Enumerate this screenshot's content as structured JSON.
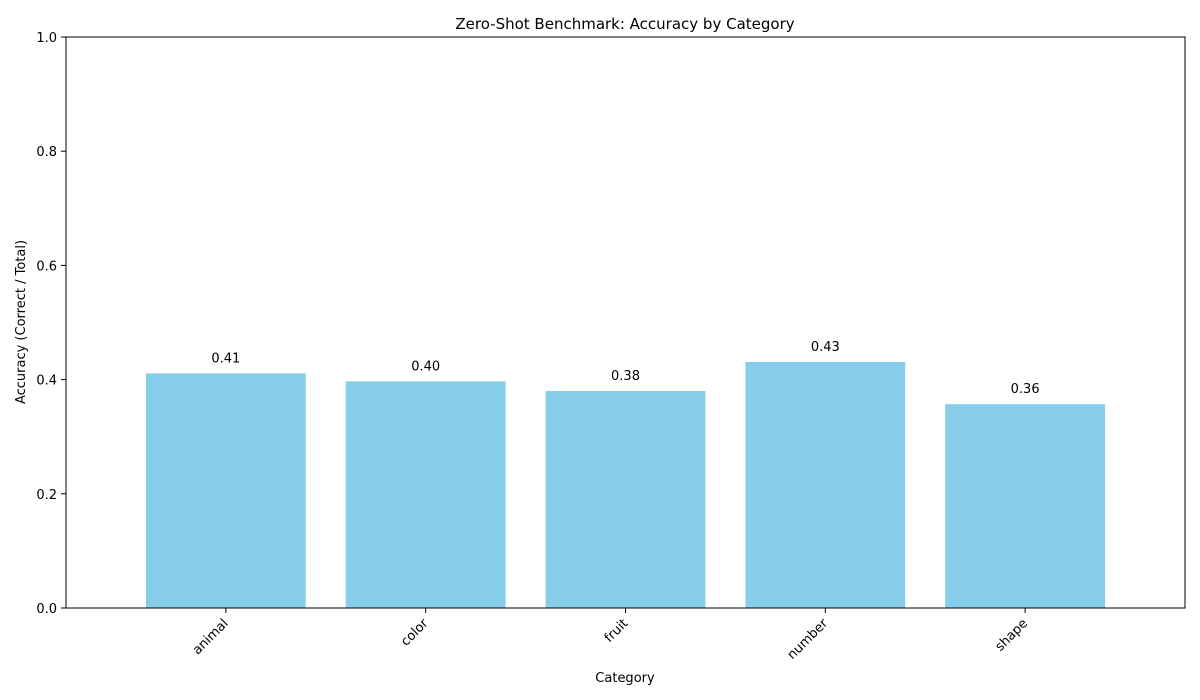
{
  "chart_data": {
    "type": "bar",
    "title": "Zero-Shot Benchmark: Accuracy by Category",
    "xlabel": "Category",
    "ylabel": "Accuracy (Correct / Total)",
    "categories": [
      "animal",
      "color",
      "fruit",
      "number",
      "shape"
    ],
    "values": [
      0.411,
      0.397,
      0.38,
      0.431,
      0.357
    ],
    "value_labels": [
      "0.41",
      "0.40",
      "0.38",
      "0.43",
      "0.36"
    ],
    "ylim": [
      0,
      1
    ],
    "yticks": [
      "0.0",
      "0.2",
      "0.4",
      "0.6",
      "0.8",
      "1.0"
    ],
    "ytick_values": [
      0,
      0.2,
      0.4,
      0.6,
      0.8,
      1.0
    ],
    "bar_color": "#87CEEB",
    "grid": false,
    "legend": "none"
  }
}
